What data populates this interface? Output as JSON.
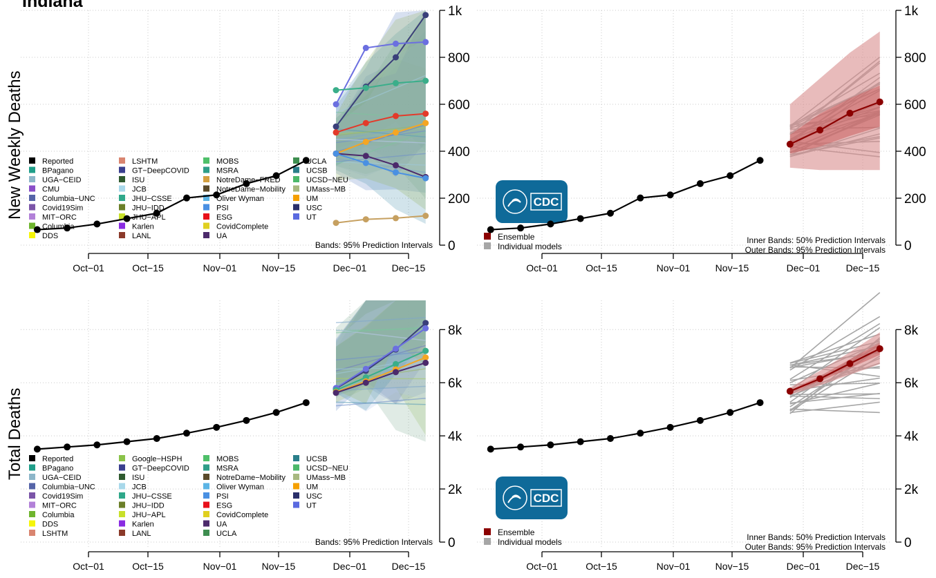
{
  "title": "Indiana",
  "colors": {
    "reported": "#000000",
    "ensemble": "#8B0000",
    "ensemble_band": "#D98E8E",
    "individual": "#A6A6A6"
  },
  "logo": {
    "text": "CDC",
    "color": "#0F6A99"
  },
  "chart_data": [
    {
      "id": "weekly_models",
      "type": "line",
      "ylabel": "New Weekly Deaths",
      "x_ticks": [
        "Oct−01",
        "Oct−15",
        "Nov−01",
        "Nov−15",
        "Dec−01",
        "Dec−15"
      ],
      "x_tick_dates": [
        "2020-10-01",
        "2020-10-15",
        "2020-11-01",
        "2020-11-15",
        "2020-12-01",
        "2020-12-15"
      ],
      "y_ticks": [
        0,
        200,
        400,
        600,
        800,
        1000
      ],
      "y_tick_labels": [
        "0",
        "200",
        "400",
        "600",
        "800",
        "1k"
      ],
      "ylim": [
        0,
        1000
      ],
      "grid": true,
      "band_note": "Bands: 95% Prediction Intervals",
      "reported": {
        "name": "Reported",
        "x": [
          "2020-09-19",
          "2020-09-26",
          "2020-10-03",
          "2020-10-10",
          "2020-10-17",
          "2020-10-24",
          "2020-10-31",
          "2020-11-07",
          "2020-11-14",
          "2020-11-21"
        ],
        "y": [
          66,
          73,
          90,
          113,
          136,
          201,
          214,
          262,
          296,
          361
        ]
      },
      "forecast_x": [
        "2020-11-28",
        "2020-12-05",
        "2020-12-12",
        "2020-12-19"
      ],
      "highlight_series": [
        {
          "color": "#3A3F7A",
          "y": [
            505,
            675,
            800,
            980
          ]
        },
        {
          "color": "#6B6FE0",
          "y": [
            600,
            840,
            858,
            865
          ]
        },
        {
          "color": "#3AAE8A",
          "y": [
            660,
            670,
            690,
            700
          ]
        },
        {
          "color": "#E33A2A",
          "y": [
            480,
            520,
            550,
            560
          ]
        },
        {
          "color": "#F5A623",
          "y": [
            390,
            440,
            480,
            520
          ]
        },
        {
          "color": "#C6A060",
          "y": [
            95,
            110,
            115,
            125
          ]
        },
        {
          "color": "#4C2A6B",
          "y": [
            390,
            380,
            340,
            290
          ]
        },
        {
          "color": "#4A90E2",
          "y": [
            390,
            350,
            310,
            285
          ]
        }
      ],
      "legend_columns": [
        [
          [
            "Reported",
            "#000000"
          ],
          [
            "BPagano",
            "#1F9E89"
          ],
          [
            "UGA−CEID",
            "#8DB6C9"
          ],
          [
            "CMU",
            "#8A4FC8"
          ],
          [
            "Columbia−UNC",
            "#5564A8"
          ],
          [
            "Covid19Sim",
            "#7B55A8"
          ],
          [
            "MIT−ORC",
            "#B281D8"
          ],
          [
            "Columbia",
            "#6FB52E"
          ],
          [
            "DDS",
            "#F5F50A"
          ]
        ],
        [
          [
            "LSHTM",
            "#D98570"
          ],
          [
            "GT−DeepCOVID",
            "#3A3F8F"
          ],
          [
            "ISU",
            "#2F5A2F"
          ],
          [
            "JCB",
            "#A8D8EA"
          ],
          [
            "JHU−CSSE",
            "#2FA88A"
          ],
          [
            "JHU−IDD",
            "#6B7F28"
          ],
          [
            "JHU−APL",
            "#C8E02A"
          ],
          [
            "Karlen",
            "#8A2BE2"
          ],
          [
            "LANL",
            "#8B3A2A"
          ]
        ],
        [
          [
            "MOBS",
            "#4FC06A"
          ],
          [
            "MSRA",
            "#2F9E88"
          ],
          [
            "NotreDame−FRED",
            "#D4A040"
          ],
          [
            "NotreDame−Mobility",
            "#5A4A2A"
          ],
          [
            "Oliver Wyman",
            "#5BB4E5"
          ],
          [
            "PSI",
            "#4A90E2"
          ],
          [
            "ESG",
            "#E8101A"
          ],
          [
            "CovidComplete",
            "#E0D020"
          ],
          [
            "UA",
            "#4C2A6B"
          ]
        ],
        [
          [
            "UCLA",
            "#3E8E50"
          ],
          [
            "UCSB",
            "#2A7F8A"
          ],
          [
            "UCSD−NEU",
            "#4CB86A"
          ],
          [
            "UMass−MB",
            "#A8B880"
          ],
          [
            "UM",
            "#F5A000"
          ],
          [
            "USC",
            "#2A2F6A"
          ],
          [
            "UT",
            "#5A6AE0"
          ]
        ]
      ]
    },
    {
      "id": "weekly_ensemble",
      "type": "line",
      "x_ticks": [
        "Oct−01",
        "Oct−15",
        "Nov−01",
        "Nov−15",
        "Dec−01",
        "Dec−15"
      ],
      "y_ticks": [
        0,
        200,
        400,
        600,
        800,
        1000
      ],
      "y_tick_labels": [
        "0",
        "200",
        "400",
        "600",
        "800",
        "1k"
      ],
      "ylim": [
        0,
        1000
      ],
      "grid": true,
      "band_note_lines": [
        "Inner Bands: 50% Prediction Intervals",
        "Outer Bands: 95% Prediction Intervals"
      ],
      "legend": [
        [
          "Ensemble",
          "#8B0000"
        ],
        [
          "Individual models",
          "#A6A6A6"
        ]
      ],
      "reported": {
        "x": [
          "2020-09-19",
          "2020-09-26",
          "2020-10-03",
          "2020-10-10",
          "2020-10-17",
          "2020-10-24",
          "2020-10-31",
          "2020-11-07",
          "2020-11-14",
          "2020-11-21"
        ],
        "y": [
          66,
          73,
          90,
          113,
          136,
          201,
          214,
          262,
          296,
          361
        ]
      },
      "ensemble": {
        "x": [
          "2020-11-28",
          "2020-12-05",
          "2020-12-12",
          "2020-12-19"
        ],
        "y": [
          430,
          490,
          562,
          610
        ],
        "inner_lo": [
          390,
          420,
          465,
          505
        ],
        "inner_hi": [
          470,
          560,
          625,
          680
        ],
        "outer_lo": [
          330,
          320,
          320,
          320
        ],
        "outer_hi": [
          600,
          710,
          820,
          910
        ]
      }
    },
    {
      "id": "cum_models",
      "type": "line",
      "ylabel": "Total Deaths",
      "x_ticks": [
        "Oct−01",
        "Oct−15",
        "Nov−01",
        "Nov−15",
        "Dec−01",
        "Dec−15"
      ],
      "y_ticks": [
        0,
        2000,
        4000,
        6000,
        8000
      ],
      "y_tick_labels": [
        "0",
        "2k",
        "4k",
        "6k",
        "8k"
      ],
      "ylim": [
        0,
        9100
      ],
      "grid": true,
      "band_note": "Bands: 95% Prediction Intervals",
      "reported": {
        "x": [
          "2020-09-19",
          "2020-09-26",
          "2020-10-03",
          "2020-10-10",
          "2020-10-17",
          "2020-10-24",
          "2020-10-31",
          "2020-11-07",
          "2020-11-14",
          "2020-11-21"
        ],
        "y": [
          3500,
          3580,
          3660,
          3780,
          3900,
          4100,
          4320,
          4580,
          4880,
          5250
        ]
      },
      "forecast_x": [
        "2020-11-28",
        "2020-12-05",
        "2020-12-12",
        "2020-12-19"
      ],
      "highlight_series": [
        {
          "color": "#3A3F7A",
          "y": [
            5780,
            6450,
            7250,
            8250
          ]
        },
        {
          "color": "#6B6FE0",
          "y": [
            5800,
            6520,
            7280,
            8050
          ]
        },
        {
          "color": "#3AAE8A",
          "y": [
            5720,
            6200,
            6700,
            7200
          ]
        },
        {
          "color": "#F5A623",
          "y": [
            5650,
            6050,
            6500,
            6950
          ]
        },
        {
          "color": "#4C2A6B",
          "y": [
            5620,
            6000,
            6400,
            6750
          ]
        }
      ],
      "legend_columns": [
        [
          [
            "Reported",
            "#000000"
          ],
          [
            "BPagano",
            "#1F9E89"
          ],
          [
            "UGA−CEID",
            "#8DB6C9"
          ],
          [
            "Columbia−UNC",
            "#5564A8"
          ],
          [
            "Covid19Sim",
            "#7B55A8"
          ],
          [
            "MIT−ORC",
            "#B281D8"
          ],
          [
            "Columbia",
            "#6FB52E"
          ],
          [
            "DDS",
            "#F5F50A"
          ],
          [
            "LSHTM",
            "#D98570"
          ]
        ],
        [
          [
            "Google−HSPH",
            "#8BC34A"
          ],
          [
            "GT−DeepCOVID",
            "#3A3F8F"
          ],
          [
            "ISU",
            "#2F5A2F"
          ],
          [
            "JCB",
            "#A8D8EA"
          ],
          [
            "JHU−CSSE",
            "#2FA88A"
          ],
          [
            "JHU−IDD",
            "#6B7F28"
          ],
          [
            "JHU−APL",
            "#C8E02A"
          ],
          [
            "Karlen",
            "#8A2BE2"
          ],
          [
            "LANL",
            "#8B3A2A"
          ]
        ],
        [
          [
            "MOBS",
            "#4FC06A"
          ],
          [
            "MSRA",
            "#2F9E88"
          ],
          [
            "NotreDame−Mobility",
            "#5A4A2A"
          ],
          [
            "Oliver Wyman",
            "#5BB4E5"
          ],
          [
            "PSI",
            "#4A90E2"
          ],
          [
            "ESG",
            "#E8101A"
          ],
          [
            "CovidComplete",
            "#E0D020"
          ],
          [
            "UA",
            "#4C2A6B"
          ],
          [
            "UCLA",
            "#3E8E50"
          ]
        ],
        [
          [
            "UCSB",
            "#2A7F8A"
          ],
          [
            "UCSD−NEU",
            "#4CB86A"
          ],
          [
            "UMass−MB",
            "#A8B880"
          ],
          [
            "UM",
            "#F5A000"
          ],
          [
            "USC",
            "#2A2F6A"
          ],
          [
            "UT",
            "#5A6AE0"
          ]
        ]
      ]
    },
    {
      "id": "cum_ensemble",
      "type": "line",
      "x_ticks": [
        "Oct−01",
        "Oct−15",
        "Nov−01",
        "Nov−15",
        "Dec−01",
        "Dec−15"
      ],
      "y_ticks": [
        0,
        2000,
        4000,
        6000,
        8000
      ],
      "y_tick_labels": [
        "0",
        "2k",
        "4k",
        "6k",
        "8k"
      ],
      "ylim": [
        0,
        9100
      ],
      "grid": true,
      "band_note_lines": [
        "Inner Bands: 50% Prediction Intervals",
        "Outer Bands: 95% Prediction Intervals"
      ],
      "legend": [
        [
          "Ensemble",
          "#8B0000"
        ],
        [
          "Individual models",
          "#A6A6A6"
        ]
      ],
      "reported": {
        "x": [
          "2020-09-19",
          "2020-09-26",
          "2020-10-03",
          "2020-10-10",
          "2020-10-17",
          "2020-10-24",
          "2020-10-31",
          "2020-11-07",
          "2020-11-14",
          "2020-11-21"
        ],
        "y": [
          3500,
          3580,
          3660,
          3780,
          3900,
          4100,
          4320,
          4580,
          4880,
          5250
        ]
      },
      "ensemble": {
        "x": [
          "2020-11-28",
          "2020-12-05",
          "2020-12-12",
          "2020-12-19"
        ],
        "y": [
          5680,
          6150,
          6720,
          7280
        ],
        "inner_lo": [
          5630,
          6050,
          6550,
          7050
        ],
        "inner_hi": [
          5730,
          6250,
          6880,
          7500
        ],
        "outer_lo": [
          5550,
          5900,
          6300,
          6700
        ],
        "outer_hi": [
          5820,
          6450,
          7150,
          7900
        ]
      }
    }
  ]
}
